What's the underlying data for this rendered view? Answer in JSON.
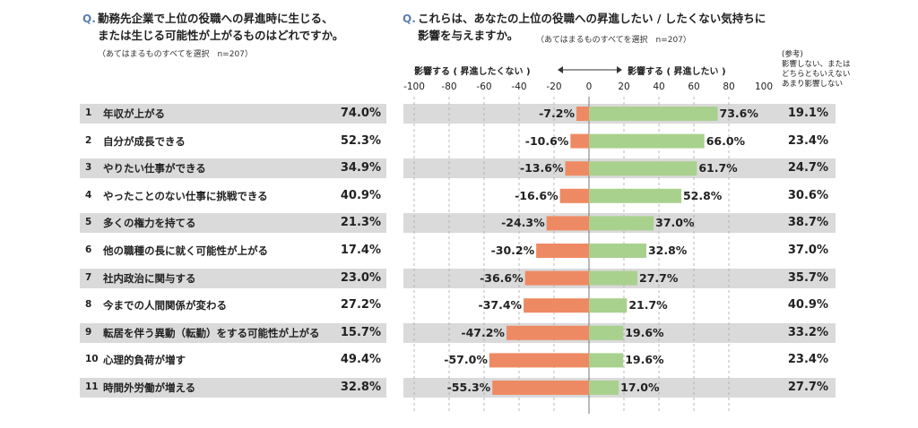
{
  "left": {
    "q_mark": "Q.",
    "question_line1": "勤務先企業で上位の役職への昇進時に生じる、",
    "question_line2": "または生じる可能性が上がるものはどれですか。",
    "note": "（あてはまるものすべてを選択　n=207）"
  },
  "right": {
    "q_mark": "Q.",
    "question_line1": "これらは、あなたの上位の役職への昇進したい / したくない気持ちに",
    "question_line2": "影響を与えますか。",
    "note": "（あてはまるものすべてを選択　n=207）",
    "label_negative": "影響する ( 昇進したくない )",
    "label_positive": "影響する ( 昇進したい )",
    "ref_line1": "(参考)",
    "ref_line2": "影響しない、または",
    "ref_line3": "どちらともいえない",
    "ref_line4": "あまり影響しない"
  },
  "colors": {
    "negative": "#ee8a63",
    "positive": "#a9d18e",
    "row_bg": "#dadada",
    "accent": "#5b7fb3"
  },
  "chart_data": [
    {
      "type": "bar",
      "orientation": "horizontal",
      "categories": [
        "年収が上がる",
        "自分が成長できる",
        "やりたい仕事ができる",
        "やったことのない仕事に挑戦できる",
        "多くの権力を持てる",
        "他の職種の長に就く可能性が上がる",
        "社内政治に関与する",
        "今までの人間関係が変わる",
        "転居を伴う異動（転勤）をする可能性が上がる",
        "心理的負荷が増す",
        "時間外労働が増える"
      ],
      "numbers": [
        "1",
        "2",
        "3",
        "4",
        "5",
        "6",
        "7",
        "8",
        "9",
        "10",
        "11"
      ],
      "values": [
        74.0,
        52.3,
        34.9,
        40.9,
        21.3,
        17.4,
        23.0,
        27.2,
        15.7,
        49.4,
        32.8
      ],
      "value_labels": [
        "74.0%",
        "52.3%",
        "34.9%",
        "40.9%",
        "21.3%",
        "17.4%",
        "23.0%",
        "27.2%",
        "15.7%",
        "49.4%",
        "32.8%"
      ],
      "unit": "%"
    },
    {
      "type": "bar",
      "orientation": "horizontal",
      "stacking": "diverging",
      "xlim": [
        -100,
        100
      ],
      "xticks": [
        "-100",
        "-80",
        "-60",
        "-40",
        "-20",
        "0",
        "20",
        "40",
        "60",
        "80",
        "100"
      ],
      "grid": true,
      "series": [
        {
          "name": "影響する ( 昇進したくない )",
          "values": [
            -7.2,
            -10.6,
            -13.6,
            -16.6,
            -24.3,
            -30.2,
            -36.6,
            -37.4,
            -47.2,
            -57.0,
            -55.3
          ],
          "labels": [
            "-7.2%",
            "-10.6%",
            "-13.6%",
            "-16.6%",
            "-24.3%",
            "-30.2%",
            "-36.6%",
            "-37.4%",
            "-47.2%",
            "-57.0%",
            "-55.3%"
          ]
        },
        {
          "name": "影響する ( 昇進したい )",
          "values": [
            73.6,
            66.0,
            61.7,
            52.8,
            37.0,
            32.8,
            27.7,
            21.7,
            19.6,
            19.6,
            17.0
          ],
          "labels": [
            "73.6%",
            "66.0%",
            "61.7%",
            "52.8%",
            "37.0%",
            "32.8%",
            "27.7%",
            "21.7%",
            "19.6%",
            "19.6%",
            "17.0%"
          ]
        }
      ],
      "reference": {
        "values": [
          19.1,
          23.4,
          24.7,
          30.6,
          38.7,
          37.0,
          35.7,
          40.9,
          33.2,
          23.4,
          27.7
        ],
        "labels": [
          "19.1%",
          "23.4%",
          "24.7%",
          "30.6%",
          "38.7%",
          "37.0%",
          "35.7%",
          "40.9%",
          "33.2%",
          "23.4%",
          "27.7%"
        ]
      }
    }
  ]
}
